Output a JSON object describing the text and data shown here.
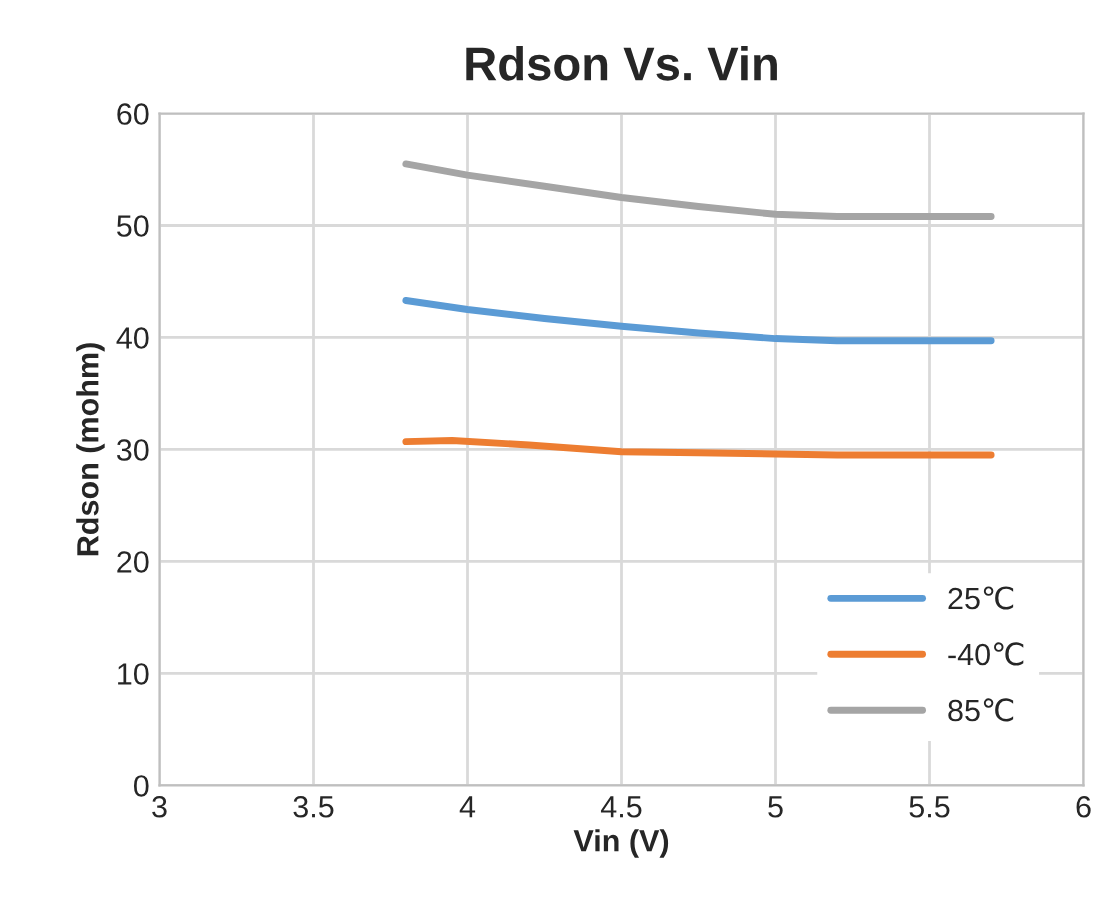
{
  "chart_data": {
    "type": "line",
    "title": "Rdson Vs. Vin",
    "xlabel": "Vin (V)",
    "ylabel": "Rdson (mohm)",
    "xlim": [
      3,
      6
    ],
    "xticks": [
      3,
      3.5,
      4,
      4.5,
      5,
      5.5,
      6
    ],
    "ylim": [
      0,
      60
    ],
    "yticks": [
      0,
      10,
      20,
      30,
      40,
      50,
      60
    ],
    "grid": true,
    "legend": "bottom right",
    "marker": "none",
    "line_style": "solid",
    "series": [
      {
        "name": "25℃",
        "color": "#5b9bd5",
        "x": [
          3.8,
          4,
          4.25,
          4.5,
          4.75,
          5,
          5.2,
          5.45,
          5.7
        ],
        "values": [
          43.3,
          42.5,
          41.7,
          41,
          40.4,
          39.9,
          39.7,
          39.7,
          39.7
        ]
      },
      {
        "name": "-40℃",
        "color": "#ed7d31",
        "x": [
          3.8,
          3.95,
          4.2,
          4.5,
          4.75,
          5,
          5.2,
          5.45,
          5.7
        ],
        "values": [
          30.7,
          30.8,
          30.4,
          29.8,
          29.7,
          29.6,
          29.5,
          29.5,
          29.5
        ]
      },
      {
        "name": "85℃",
        "color": "#a5a5a5",
        "x": [
          3.8,
          4,
          4.25,
          4.5,
          4.75,
          5,
          5.2,
          5.45,
          5.7
        ],
        "values": [
          55.5,
          54.5,
          53.5,
          52.5,
          51.7,
          51,
          50.8,
          50.8,
          50.8
        ]
      }
    ]
  }
}
